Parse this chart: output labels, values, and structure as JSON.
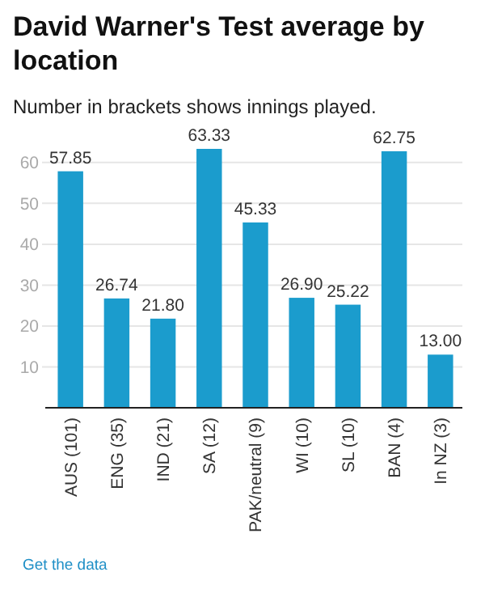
{
  "chart_data": {
    "type": "bar",
    "title": "David Warner's Test average by location",
    "subtitle": "Number in brackets shows innings played.",
    "categories": [
      "AUS (101)",
      "ENG (35)",
      "IND (21)",
      "SA (12)",
      "PAK/neutral (9)",
      "WI (10)",
      "SL (10)",
      "BAN (4)",
      "In NZ (3)"
    ],
    "values": [
      57.85,
      26.74,
      21.8,
      63.33,
      45.33,
      26.9,
      25.22,
      62.75,
      13.0
    ],
    "value_labels": [
      "57.85",
      "26.74",
      "21.80",
      "63.33",
      "45.33",
      "26.90",
      "25.22",
      "62.75",
      "13.00"
    ],
    "color": "#1b9ccd",
    "ylim": [
      0,
      63.33
    ],
    "yticks": [
      10,
      20,
      30,
      40,
      50,
      60
    ],
    "grid": "y",
    "annotations": [
      "Get the data"
    ]
  }
}
